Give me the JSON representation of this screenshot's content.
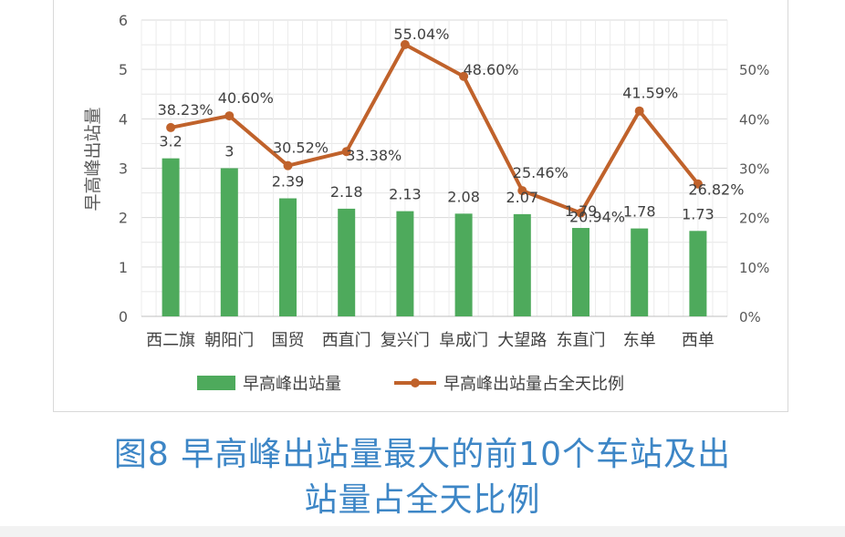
{
  "chart_data": {
    "type": "bar-line",
    "categories": [
      "西二旗",
      "朝阳门",
      "国贸",
      "西直门",
      "复兴门",
      "阜成门",
      "大望路",
      "东直门",
      "东单",
      "西单"
    ],
    "series": [
      {
        "name": "早高峰出站量",
        "type": "bar",
        "axis": "left",
        "color": "#4eaa5c",
        "values": [
          3.2,
          3,
          2.39,
          2.18,
          2.13,
          2.08,
          2.07,
          1.79,
          1.78,
          1.73
        ],
        "labels": [
          "3.2",
          "3",
          "2.39",
          "2.18",
          "2.13",
          "2.08",
          "2.07",
          "1.79",
          "1.78",
          "1.73"
        ]
      },
      {
        "name": "早高峰出站量占全天比例",
        "type": "line",
        "axis": "right",
        "color": "#c0622b",
        "values": [
          38.23,
          40.6,
          30.52,
          33.38,
          55.04,
          48.6,
          25.46,
          20.94,
          41.59,
          26.82
        ],
        "labels": [
          "38.23%",
          "40.60%",
          "30.52%",
          "33.38%",
          "55.04%",
          "48.60%",
          "25.46%",
          "20.94%",
          "41.59%",
          "26.82%"
        ]
      }
    ],
    "ylabel": "早高峰出站量",
    "y_left": {
      "min": 0,
      "max": 6,
      "ticks": [
        "0",
        "1",
        "2",
        "3",
        "4",
        "5",
        "6"
      ]
    },
    "y_right": {
      "min": 0,
      "max": 60,
      "ticks": [
        "0%",
        "10%",
        "20%",
        "30%",
        "40%",
        "50%"
      ]
    },
    "grid": true,
    "legend_position": "bottom"
  },
  "caption": {
    "line1": "图8 早高峰出站量最大的前10个车站及出",
    "line2": "站量占全天比例"
  }
}
